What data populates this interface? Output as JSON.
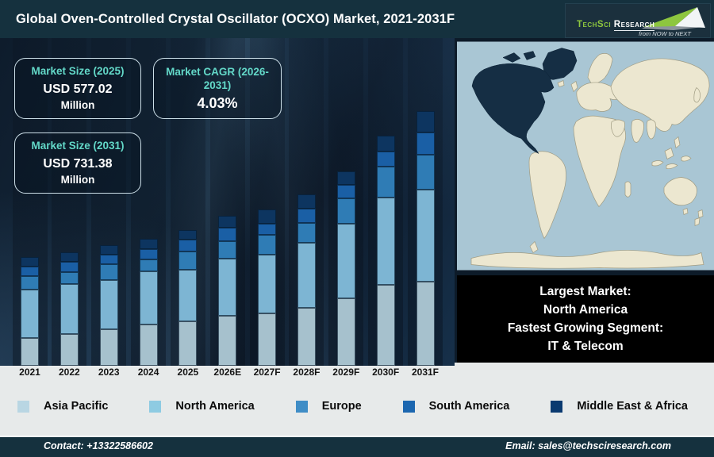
{
  "header": {
    "title": "Global Oven-Controlled Crystal Oscillator (OCXO) Market, 2021-2031F",
    "logo": {
      "brand_primary": "TechSci",
      "brand_secondary": "Research",
      "tagline": "from NOW to NEXT"
    }
  },
  "stats": [
    {
      "title": "Market Size (2025)",
      "value": "USD 577.02",
      "suffix": "Million"
    },
    {
      "title": "Market CAGR (2026-2031)",
      "value": "4.03%",
      "suffix": ""
    },
    {
      "title": "Market Size (2031)",
      "value": "USD 731.38",
      "suffix": "Million"
    }
  ],
  "chart_data": {
    "type": "bar",
    "subtype": "stacked-vertical",
    "categories": [
      "2021",
      "2022",
      "2023",
      "2024",
      "2025",
      "2026E",
      "2027F",
      "2028F",
      "2029F",
      "2030F",
      "2031F"
    ],
    "series": [
      {
        "name": "Asia Pacific",
        "color": "#a6c1cd",
        "legend_color": "#b9d6e3",
        "values": [
          35,
          40,
          46,
          52,
          56,
          63,
          66,
          73,
          85,
          102,
          106
        ]
      },
      {
        "name": "North America",
        "color": "#7db5d3",
        "legend_color": "#8ecbe2",
        "values": [
          61,
          63,
          62,
          67,
          65,
          72,
          74,
          82,
          94,
          110,
          116
        ]
      },
      {
        "name": "Europe",
        "color": "#2f7cb5",
        "legend_color": "#3f8dc6",
        "values": [
          17,
          15,
          20,
          15,
          23,
          22,
          25,
          25,
          32,
          39,
          44
        ]
      },
      {
        "name": "South America",
        "color": "#1a5fa5",
        "legend_color": "#1c67b0",
        "values": [
          12,
          13,
          12,
          13,
          15,
          17,
          14,
          18,
          17,
          19,
          28
        ]
      },
      {
        "name": "Middle East & Africa",
        "color": "#0d3560",
        "legend_color": "#0a3a70",
        "values": [
          12,
          12,
          12,
          13,
          12,
          15,
          18,
          18,
          17,
          20,
          27
        ]
      }
    ],
    "value_axis_shown": false,
    "note": "Bars are unlabeled; series values are the drawn segment heights in pixels.",
    "annotations": {
      "market_size_2025_usd_million": 577.02,
      "market_size_2031_usd_million": 731.38,
      "cagr_2026_2031_percent": 4.03
    },
    "legend_position": "bottom"
  },
  "map": {
    "highlight_region": "North America",
    "ocean_color": "#a9c6d4",
    "land_color": "#ece7d0",
    "highlight_color": "#152e44"
  },
  "info_box": {
    "lines": [
      "Largest Market:",
      "North America",
      "Fastest Growing Segment:",
      "IT & Telecom"
    ]
  },
  "footer": {
    "contact": "Contact: +13322586602",
    "email": "Email: sales@techsciresearch.com"
  }
}
